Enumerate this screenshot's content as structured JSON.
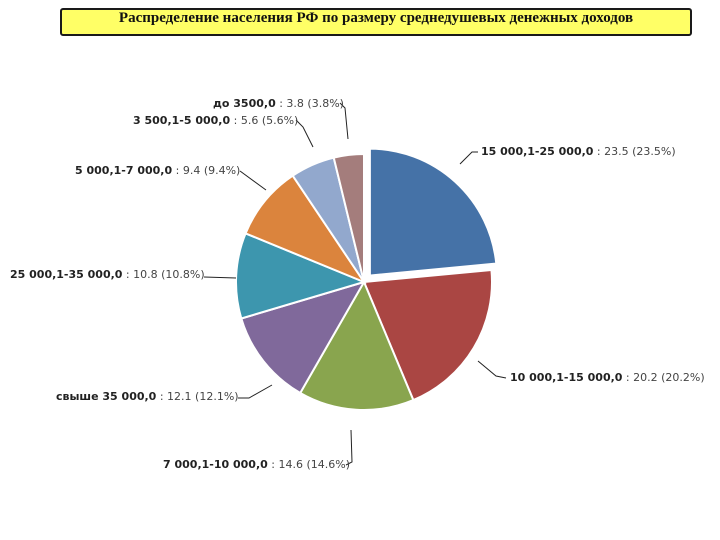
{
  "chart_data": {
    "type": "pie",
    "title": "Распределение населения РФ по размеру среднедушевых денежных доходов",
    "slices": [
      {
        "label": "15 000,1-25 000,0",
        "value": 23.5,
        "percent": "23.5%",
        "color": "#4572a7",
        "exploded": true
      },
      {
        "label": "10 000,1-15 000,0",
        "value": 20.2,
        "percent": "20.2%",
        "color": "#aa4643"
      },
      {
        "label": "7 000,1-10 000,0",
        "value": 14.6,
        "percent": "14.6%",
        "color": "#89a54e"
      },
      {
        "label": "свыше 35 000,0",
        "value": 12.1,
        "percent": "12.1%",
        "color": "#80699b"
      },
      {
        "label": "25 000,1-35 000,0",
        "value": 10.8,
        "percent": "10.8%",
        "color": "#3d96ae"
      },
      {
        "label": "5 000,1-7 000,0",
        "value": 9.4,
        "percent": "9.4%",
        "color": "#db843d"
      },
      {
        "label": "3 500,1-5 000,0",
        "value": 5.6,
        "percent": "5.6%",
        "color": "#92a8cd"
      },
      {
        "label": "до 3500,0",
        "value": 3.8,
        "percent": "3.8%",
        "color": "#a47d7c"
      }
    ]
  }
}
